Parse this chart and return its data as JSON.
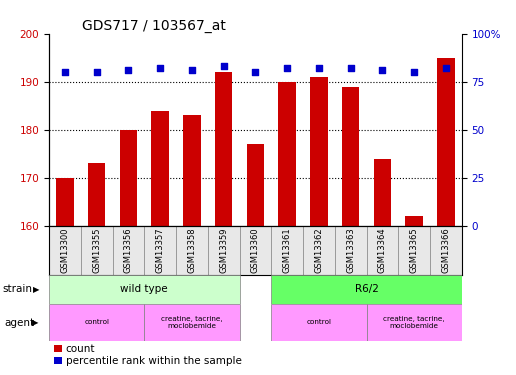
{
  "title": "GDS717 / 103567_at",
  "samples": [
    "GSM13300",
    "GSM13355",
    "GSM13356",
    "GSM13357",
    "GSM13358",
    "GSM13359",
    "GSM13360",
    "GSM13361",
    "GSM13362",
    "GSM13363",
    "GSM13364",
    "GSM13365",
    "GSM13366"
  ],
  "counts": [
    170,
    173,
    180,
    184,
    183,
    192,
    177,
    190,
    191,
    189,
    174,
    162,
    195
  ],
  "percentiles": [
    80,
    80,
    81,
    82,
    81,
    83,
    80,
    82,
    82,
    82,
    81,
    80,
    82
  ],
  "ylim_left": [
    160,
    200
  ],
  "yticks_left": [
    160,
    170,
    180,
    190,
    200
  ],
  "ylim_right": [
    0,
    100
  ],
  "yticks_right": [
    0,
    25,
    50,
    75,
    100
  ],
  "bar_color": "#cc0000",
  "dot_color": "#0000cc",
  "bar_width": 0.55,
  "grid_color": "#000000",
  "background_color": "#ffffff",
  "strain_color_wt": "#ccffcc",
  "strain_color_r62": "#66ff66",
  "agent_color": "#ff99ff",
  "title_fontsize": 10,
  "tick_fontsize": 7.5,
  "label_fontsize": 7.5,
  "legend_fontsize": 7.5,
  "sample_fontsize": 6.0
}
